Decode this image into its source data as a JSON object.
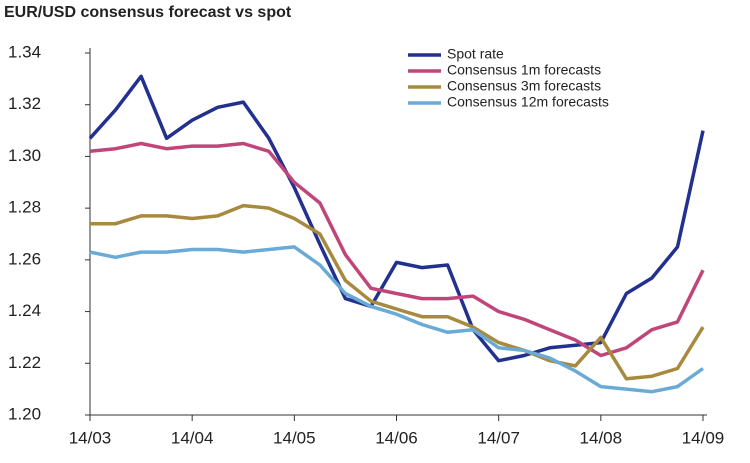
{
  "chart_data": {
    "type": "line",
    "title": "EUR/USD consensus forecast vs spot",
    "categories": [
      "14/03",
      null,
      null,
      null,
      "14/04",
      null,
      null,
      null,
      "14/05",
      null,
      null,
      null,
      "14/06",
      null,
      null,
      null,
      "14/07",
      null,
      null,
      null,
      "14/08",
      null,
      null,
      null,
      "14/09"
    ],
    "series": [
      {
        "name": "Spot rate",
        "color": "#22308f",
        "values": [
          1.307,
          1.318,
          1.331,
          1.307,
          1.314,
          1.319,
          1.321,
          1.307,
          1.288,
          1.266,
          1.245,
          1.242,
          1.259,
          1.257,
          1.258,
          1.233,
          1.221,
          1.223,
          1.226,
          1.227,
          1.228,
          1.247,
          1.253,
          1.265,
          1.31
        ]
      },
      {
        "name": "Consensus 1m forecasts",
        "color": "#c0467a",
        "values": [
          1.302,
          1.303,
          1.305,
          1.303,
          1.304,
          1.304,
          1.305,
          1.302,
          1.29,
          1.282,
          1.262,
          1.249,
          1.247,
          1.245,
          1.245,
          1.246,
          1.24,
          1.237,
          1.233,
          1.229,
          1.223,
          1.226,
          1.233,
          1.236,
          1.256
        ]
      },
      {
        "name": "Consensus 3m forecasts",
        "color": "#a88a3e",
        "values": [
          1.274,
          1.274,
          1.277,
          1.277,
          1.276,
          1.277,
          1.281,
          1.28,
          1.276,
          1.27,
          1.252,
          1.244,
          1.241,
          1.238,
          1.238,
          1.234,
          1.228,
          1.225,
          1.221,
          1.219,
          1.23,
          1.214,
          1.215,
          1.218,
          1.234
        ]
      },
      {
        "name": "Consensus 12m forecasts",
        "color": "#6aaad6",
        "values": [
          1.263,
          1.261,
          1.263,
          1.263,
          1.264,
          1.264,
          1.263,
          1.264,
          1.265,
          1.258,
          1.247,
          1.242,
          1.239,
          1.235,
          1.232,
          1.233,
          1.226,
          1.225,
          1.222,
          1.217,
          1.211,
          1.21,
          1.209,
          1.211,
          1.218
        ]
      }
    ],
    "ylim": [
      1.2,
      1.34
    ],
    "yticks": [
      {
        "value": 1.2,
        "label": "1.20"
      },
      1.22,
      1.24,
      1.26,
      1.28,
      {
        "value": 1.3,
        "label": "1.30"
      },
      1.32,
      1.34
    ],
    "grid": false
  }
}
